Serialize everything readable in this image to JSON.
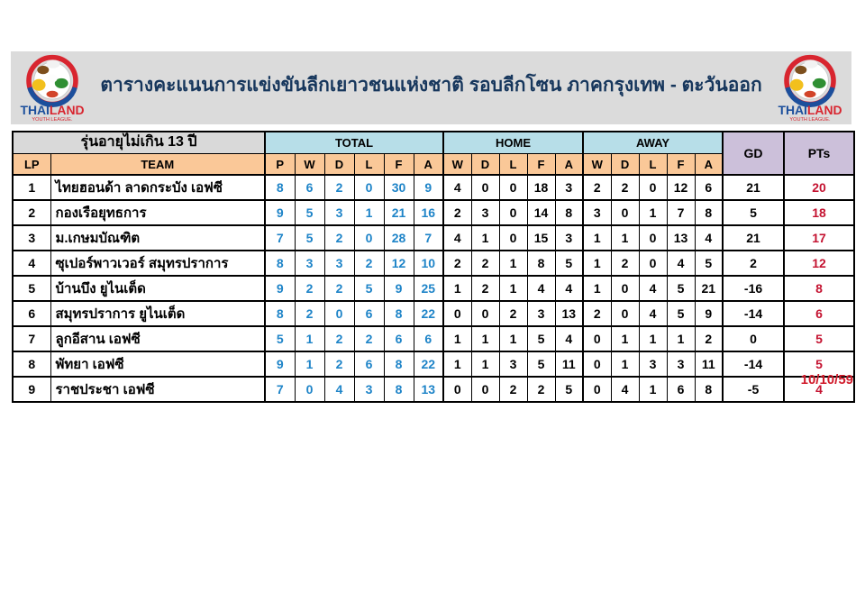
{
  "header": {
    "title": "ตารางคะแนนการแข่งขันลีกเยาวชนแห่งชาติ รอบลีกโซน ภาคกรุงเทพ - ตะวันออก",
    "logo": {
      "brand_thai": "THAI",
      "brand_land": "LAND",
      "brand_sub": "YOUTH LEAGUE."
    }
  },
  "table": {
    "age_group_label": "รุ่นอายุไม่เกิน 13 ปี",
    "groups": {
      "total": "TOTAL",
      "home": "HOME",
      "away": "AWAY"
    },
    "columns": {
      "lp": "LP",
      "team": "TEAM",
      "gd": "GD",
      "pts": "PTs",
      "stat_cols_total": [
        "P",
        "W",
        "D",
        "L",
        "F",
        "A"
      ],
      "stat_cols_home": [
        "W",
        "D",
        "L",
        "F",
        "A"
      ],
      "stat_cols_away": [
        "W",
        "D",
        "L",
        "F",
        "A"
      ]
    },
    "rows": [
      {
        "lp": "1",
        "team": "ไทยฮอนด้า ลาดกระบัง เอฟซี",
        "total": [
          "8",
          "6",
          "2",
          "0",
          "30",
          "9"
        ],
        "home": [
          "4",
          "0",
          "0",
          "18",
          "3"
        ],
        "away": [
          "2",
          "2",
          "0",
          "12",
          "6"
        ],
        "gd": "21",
        "pts": "20"
      },
      {
        "lp": "2",
        "team": "กองเรือยุทธการ",
        "total": [
          "9",
          "5",
          "3",
          "1",
          "21",
          "16"
        ],
        "home": [
          "2",
          "3",
          "0",
          "14",
          "8"
        ],
        "away": [
          "3",
          "0",
          "1",
          "7",
          "8"
        ],
        "gd": "5",
        "pts": "18"
      },
      {
        "lp": "3",
        "team": "ม.เกษมบัณฑิต",
        "total": [
          "7",
          "5",
          "2",
          "0",
          "28",
          "7"
        ],
        "home": [
          "4",
          "1",
          "0",
          "15",
          "3"
        ],
        "away": [
          "1",
          "1",
          "0",
          "13",
          "4"
        ],
        "gd": "21",
        "pts": "17"
      },
      {
        "lp": "4",
        "team": "ซุเปอร์พาวเวอร์ สมุทรปราการ",
        "total": [
          "8",
          "3",
          "3",
          "2",
          "12",
          "10"
        ],
        "home": [
          "2",
          "2",
          "1",
          "8",
          "5"
        ],
        "away": [
          "1",
          "2",
          "0",
          "4",
          "5"
        ],
        "gd": "2",
        "pts": "12"
      },
      {
        "lp": "5",
        "team": "บ้านบึง ยูไนเต็ด",
        "total": [
          "9",
          "2",
          "2",
          "5",
          "9",
          "25"
        ],
        "home": [
          "1",
          "2",
          "1",
          "4",
          "4"
        ],
        "away": [
          "1",
          "0",
          "4",
          "5",
          "21"
        ],
        "gd": "-16",
        "pts": "8"
      },
      {
        "lp": "6",
        "team": "สมุทรปราการ ยูไนเต็ด",
        "total": [
          "8",
          "2",
          "0",
          "6",
          "8",
          "22"
        ],
        "home": [
          "0",
          "0",
          "2",
          "3",
          "13"
        ],
        "away": [
          "2",
          "0",
          "4",
          "5",
          "9"
        ],
        "gd": "-14",
        "pts": "6"
      },
      {
        "lp": "7",
        "team": "ลูกอีสาน เอฟซี",
        "total": [
          "5",
          "1",
          "2",
          "2",
          "6",
          "6"
        ],
        "home": [
          "1",
          "1",
          "1",
          "5",
          "4"
        ],
        "away": [
          "0",
          "1",
          "1",
          "1",
          "2"
        ],
        "gd": "0",
        "pts": "5"
      },
      {
        "lp": "8",
        "team": "พัทยา เอฟซี",
        "total": [
          "9",
          "1",
          "2",
          "6",
          "8",
          "22"
        ],
        "home": [
          "1",
          "1",
          "3",
          "5",
          "11"
        ],
        "away": [
          "0",
          "1",
          "3",
          "3",
          "11"
        ],
        "gd": "-14",
        "pts": "5"
      },
      {
        "lp": "9",
        "team": "ราชประชา เอฟซี",
        "total": [
          "7",
          "0",
          "4",
          "3",
          "8",
          "13"
        ],
        "home": [
          "0",
          "0",
          "2",
          "2",
          "5"
        ],
        "away": [
          "0",
          "4",
          "1",
          "6",
          "8"
        ],
        "gd": "-5",
        "pts": "4"
      }
    ]
  },
  "footer": {
    "date": "10/10/59"
  },
  "colors": {
    "band_gray": "#DBDBDB",
    "age_cell_gray": "#D9D9D9",
    "group_header_blue": "#B7DEE8",
    "stat_header_peach": "#FAC898",
    "side_header_lavender": "#CCC0DA",
    "title_navy": "#16365C",
    "total_number_blue": "#1E84C8",
    "pts_red": "#C41230",
    "date_red": "#D11B2B"
  }
}
